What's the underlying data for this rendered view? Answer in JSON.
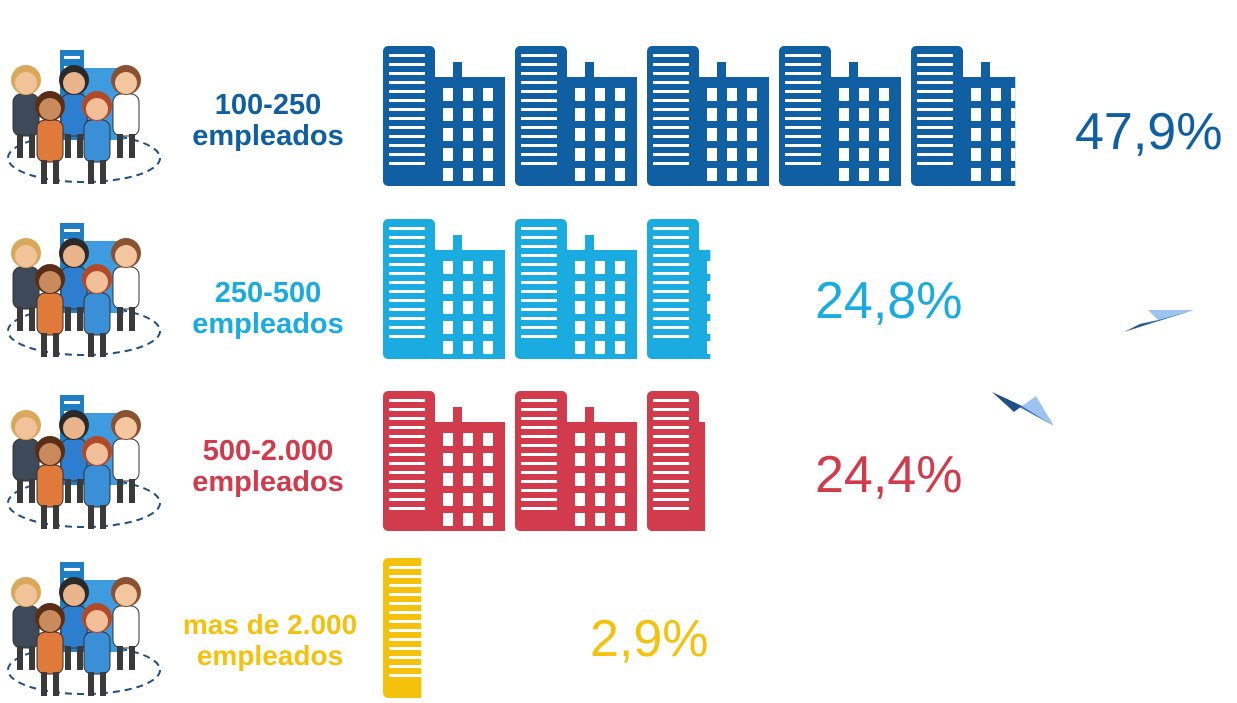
{
  "chart_data": {
    "type": "bar",
    "orientation": "horizontal",
    "unit": "%",
    "categories": [
      {
        "line1": "100-250",
        "line2": "empleados",
        "value": 47.9,
        "label": "47,9%",
        "color": "#0f5fa2"
      },
      {
        "line1": "250-500",
        "line2": "empleados",
        "value": 24.8,
        "label": "24,8%",
        "color": "#1aace0"
      },
      {
        "line1": "500-2.000",
        "line2": "empleados",
        "value": 24.4,
        "label": "24,4%",
        "color": "#d23b4b"
      },
      {
        "line1": "mas de 2.000",
        "line2": "empleados",
        "value": 2.9,
        "label": "2,9%",
        "color": "#f4c20d"
      }
    ]
  },
  "icons": {
    "group": "people-group-icon",
    "bar_unit": "office-building-icon",
    "decoration": "paper-plane-icon"
  },
  "decor_colors": {
    "plane": "#2f6fc4",
    "plane_light": "#9dc3ee",
    "ellipse": "#1f4f86"
  }
}
